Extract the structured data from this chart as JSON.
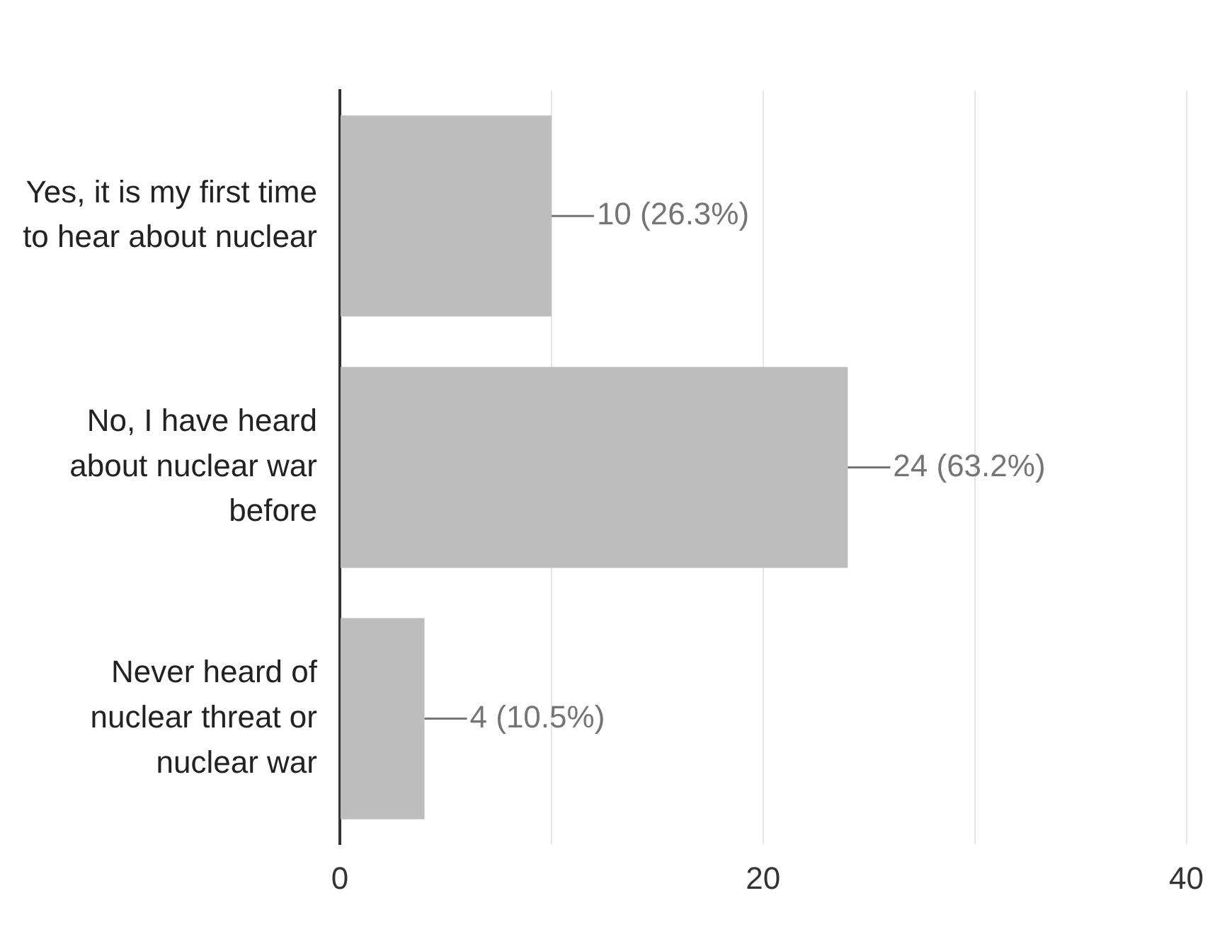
{
  "chart_data": {
    "type": "bar",
    "orientation": "horizontal",
    "categories": [
      "Yes, it is my first time to hear about nuclear",
      "No, I have heard about nuclear war before",
      "Never heard of nuclear threat or nuclear war"
    ],
    "values": [
      10,
      24,
      4
    ],
    "color": "#bdbdbd",
    "value_labels": [
      "10 (26.3%)",
      "24 (63.2%)",
      "4 (10.5%)"
    ],
    "xlim": [
      0,
      40
    ],
    "xticks": [
      0,
      {
        "value": 10,
        "label": null
      },
      20,
      {
        "value": 30,
        "label": null
      },
      40
    ],
    "grid": "x",
    "legend": false
  }
}
